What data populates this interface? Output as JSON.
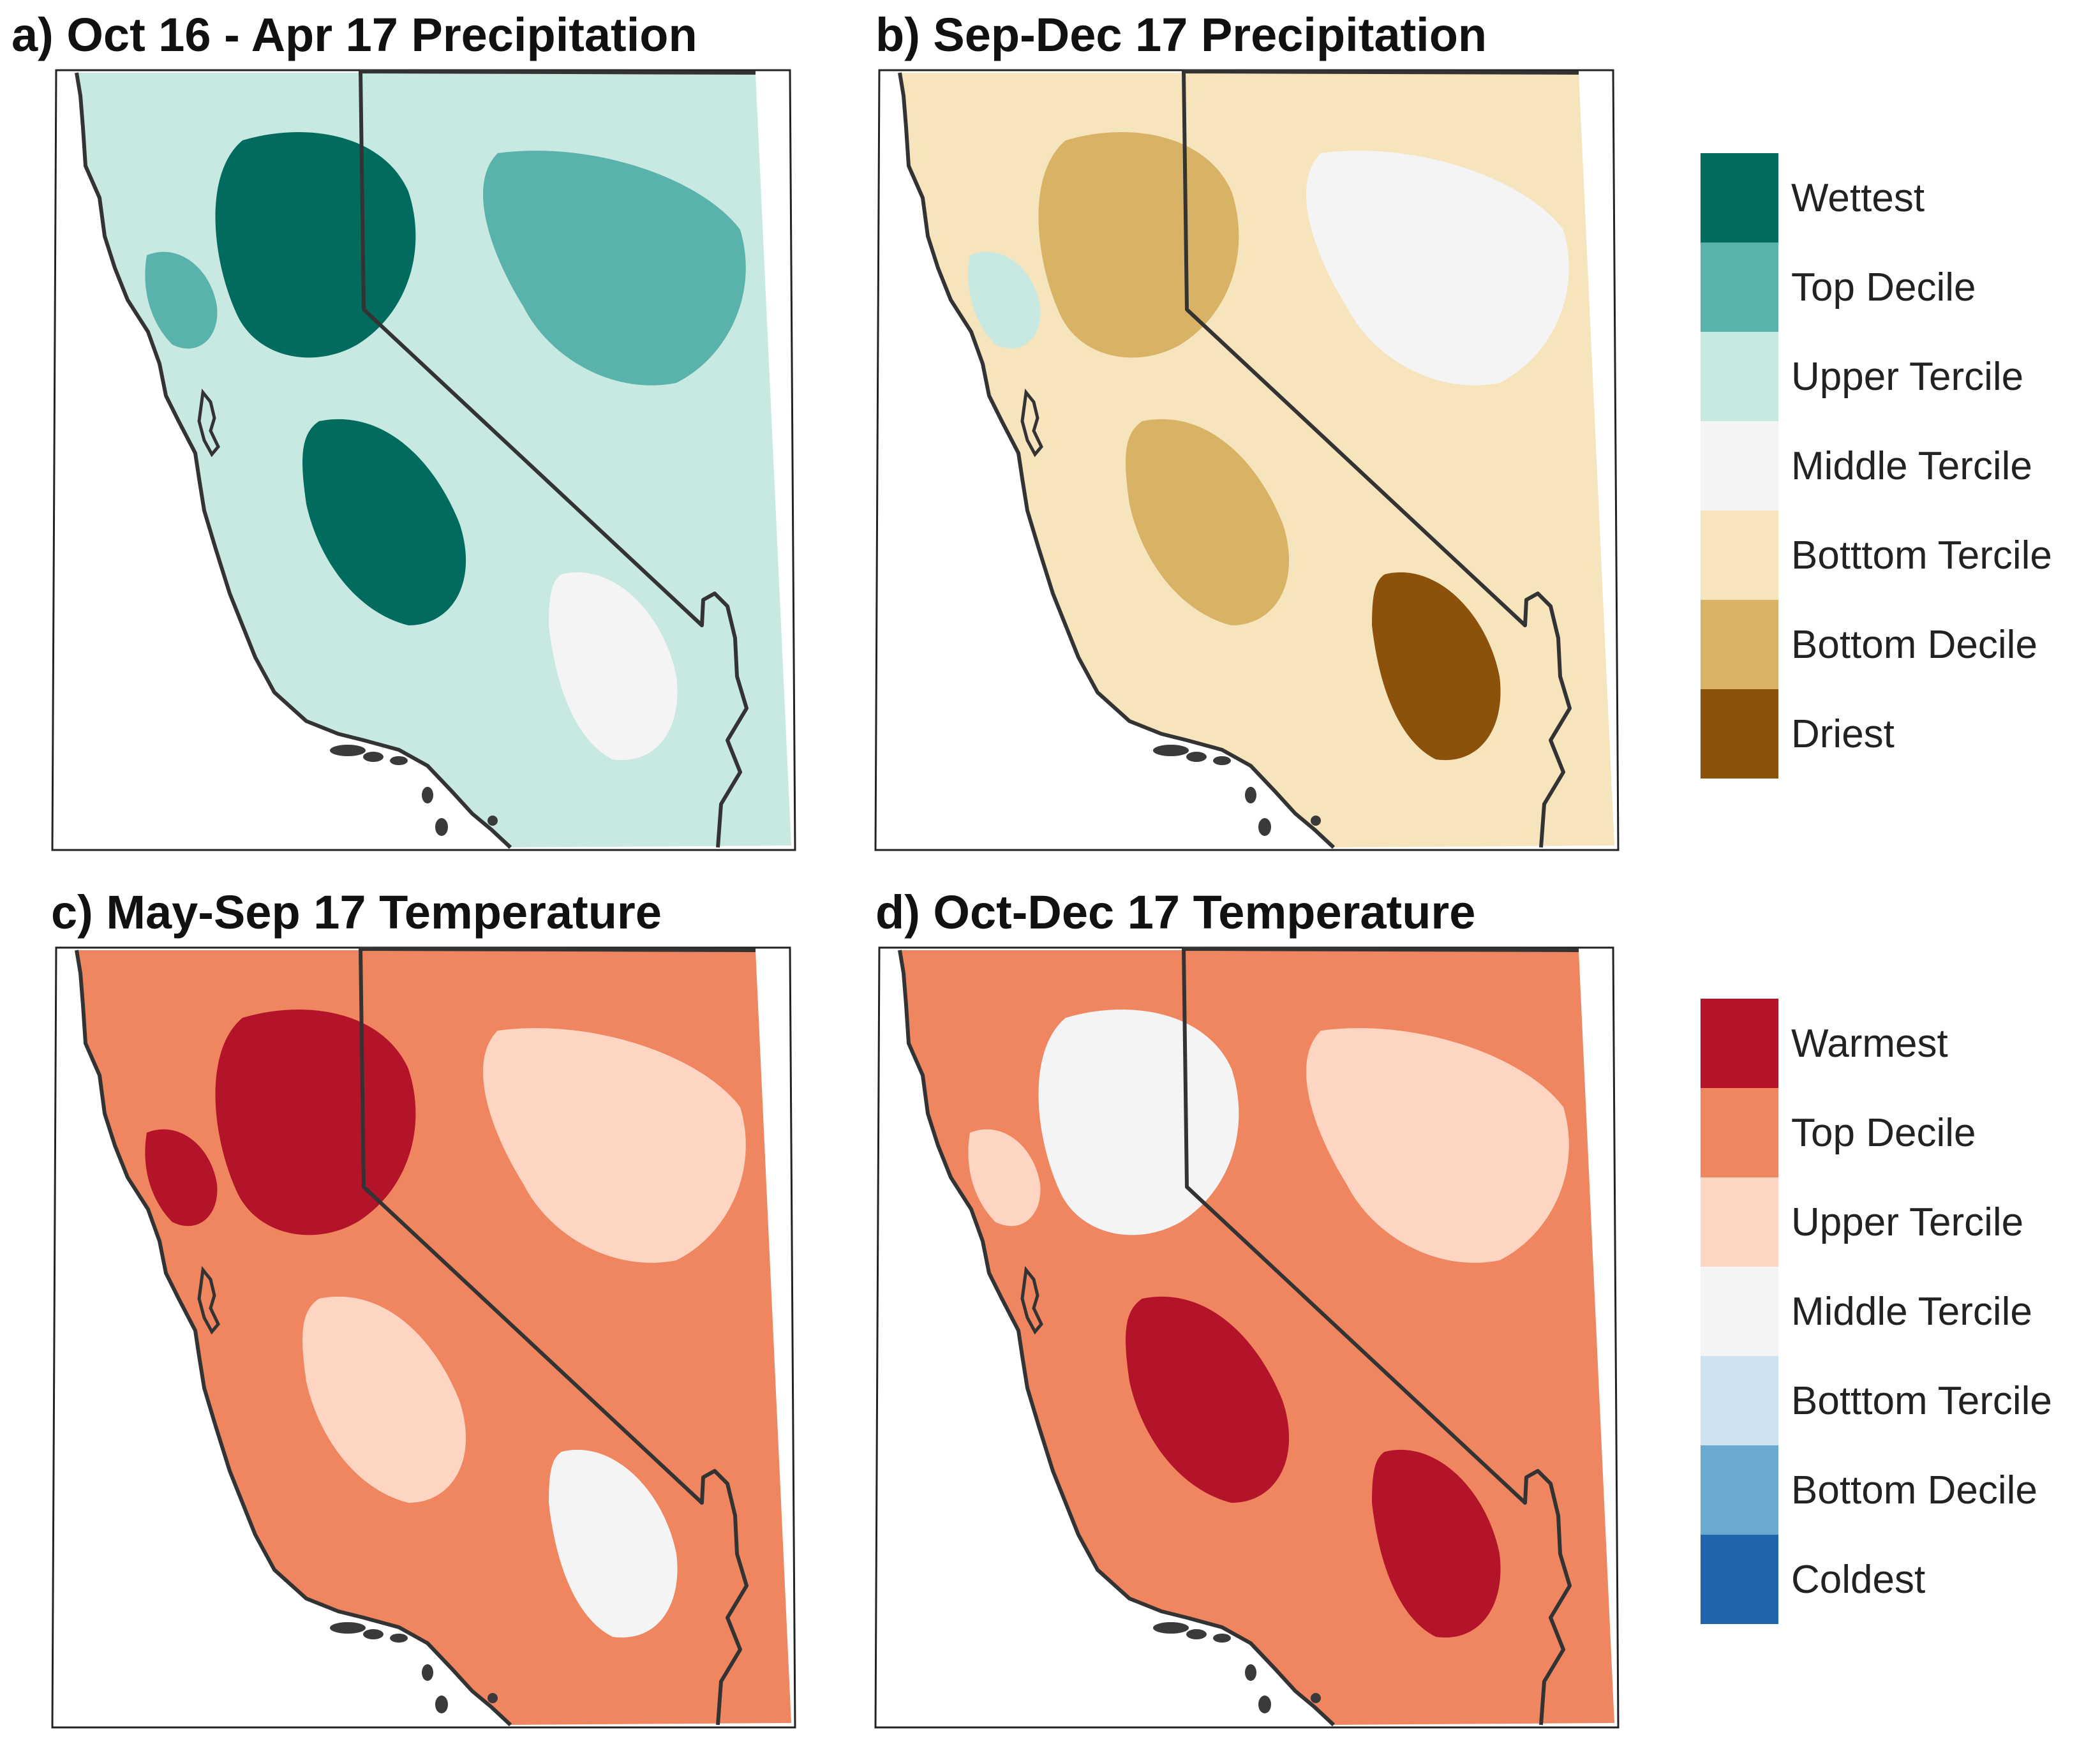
{
  "panels": [
    {
      "key": "a",
      "title": "a) Oct 16 - Apr 17 Precipitation",
      "scale": "precip",
      "colors": {
        "base": "#c7e9e1",
        "z1": "#5ab3aa",
        "z2": "#016c5e",
        "z3": "#016c5e",
        "z4": "#f4f4f4",
        "z5": "#5ab3aa"
      }
    },
    {
      "key": "b",
      "title": "b) Sep-Dec 17 Precipitation",
      "scale": "precip",
      "colors": {
        "base": "#f5e4bc",
        "z1": "#f4f4f4",
        "z2": "#d8b365",
        "z3": "#d8b365",
        "z4": "#8c510a",
        "z5": "#c7e9e1"
      }
    },
    {
      "key": "c",
      "title": "c) May-Sep 17 Temperature",
      "scale": "temp",
      "colors": {
        "base": "#f0865f",
        "z1": "#fdd5c2",
        "z2": "#b3142a",
        "z3": "#fdd5c2",
        "z4": "#f4f4f4",
        "z5": "#b3142a"
      }
    },
    {
      "key": "d",
      "title": "d) Oct-Dec 17 Temperature",
      "scale": "temp",
      "colors": {
        "base": "#f0865f",
        "z1": "#fdd5c2",
        "z2": "#f4f4f4",
        "z3": "#b3142a",
        "z4": "#b3142a",
        "z5": "#fdd5c2"
      }
    }
  ],
  "legends": {
    "precip": {
      "items": [
        {
          "label": "Wettest",
          "color": "#016c5e"
        },
        {
          "label": "Top Decile",
          "color": "#5ab3aa"
        },
        {
          "label": "Upper Tercile",
          "color": "#c7e9e1"
        },
        {
          "label": "Middle Tercile",
          "color": "#f4f4f4"
        },
        {
          "label": "Botttom Tercile",
          "color": "#f5e4bc"
        },
        {
          "label": "Bottom Decile",
          "color": "#d8b365"
        },
        {
          "label": "Driest",
          "color": "#8c510a"
        }
      ]
    },
    "temp": {
      "items": [
        {
          "label": "Warmest",
          "color": "#b3142a"
        },
        {
          "label": "Top Decile",
          "color": "#f0865f"
        },
        {
          "label": "Upper Tercile",
          "color": "#fdd5c2"
        },
        {
          "label": "Middle Tercile",
          "color": "#f4f4f4"
        },
        {
          "label": "Botttom Tercile",
          "color": "#cfe2f0"
        },
        {
          "label": "Bottom Decile",
          "color": "#6aa9d0"
        },
        {
          "label": "Coldest",
          "color": "#2166ac"
        }
      ]
    }
  }
}
